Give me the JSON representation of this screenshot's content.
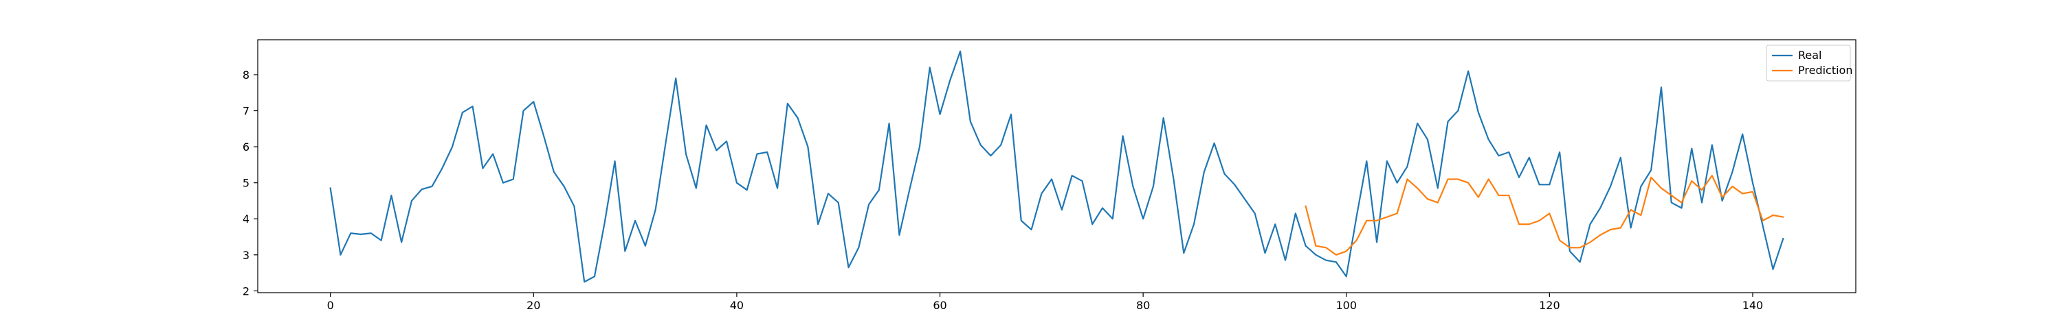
{
  "chart_data": {
    "type": "line",
    "title": "",
    "xlabel": "",
    "ylabel": "",
    "xlim": [
      -7.15,
      150.15
    ],
    "ylim": [
      1.95,
      8.97
    ],
    "x_ticks": [
      0,
      20,
      40,
      60,
      80,
      100,
      120,
      140
    ],
    "y_ticks": [
      2,
      3,
      4,
      5,
      6,
      7,
      8
    ],
    "grid": false,
    "legend": {
      "position": "upper right"
    },
    "series": [
      {
        "name": "Real",
        "color": "#1f77b4",
        "x_start": 0,
        "values": [
          4.85,
          3.0,
          3.6,
          3.57,
          3.6,
          3.4,
          4.65,
          3.35,
          4.5,
          4.82,
          4.9,
          5.4,
          6.0,
          6.95,
          7.12,
          5.4,
          5.8,
          5.0,
          5.1,
          7.0,
          7.25,
          6.3,
          5.3,
          4.9,
          4.35,
          2.25,
          2.4,
          3.9,
          5.6,
          3.1,
          3.95,
          3.25,
          4.25,
          6.1,
          7.9,
          5.8,
          4.85,
          6.6,
          5.9,
          6.15,
          5.0,
          4.8,
          5.8,
          5.85,
          4.85,
          7.2,
          6.8,
          6.0,
          3.85,
          4.7,
          4.45,
          2.65,
          3.2,
          4.4,
          4.8,
          6.65,
          3.55,
          4.8,
          6.0,
          8.2,
          6.9,
          7.85,
          8.65,
          6.7,
          6.05,
          5.75,
          6.05,
          6.9,
          3.95,
          3.7,
          4.7,
          5.1,
          4.25,
          5.2,
          5.05,
          3.85,
          4.3,
          4.0,
          6.3,
          4.9,
          4.0,
          4.9,
          6.8,
          5.1,
          3.05,
          3.85,
          5.3,
          6.1,
          5.25,
          4.95,
          4.55,
          4.15,
          3.05,
          3.85,
          2.85,
          4.15,
          3.25,
          3.0,
          2.85,
          2.8,
          2.4,
          4.05,
          5.6,
          3.35,
          5.6,
          5.0,
          5.45,
          6.65,
          6.2,
          4.85,
          6.7,
          7.0,
          8.1,
          6.95,
          6.2,
          5.75,
          5.85,
          5.15,
          5.7,
          4.95,
          4.95,
          5.85,
          3.1,
          2.8,
          3.85,
          4.3,
          4.9,
          5.7,
          3.75,
          4.9,
          5.35,
          7.65,
          4.45,
          4.3,
          5.95,
          4.45,
          6.05,
          4.5,
          5.3,
          6.35,
          5.0,
          3.8,
          2.6,
          3.45
        ]
      },
      {
        "name": "Prediction",
        "color": "#ff7f0e",
        "x_start": 96,
        "values": [
          4.35,
          3.25,
          3.2,
          3.0,
          3.1,
          3.4,
          3.95,
          3.95,
          4.05,
          4.15,
          5.1,
          4.85,
          4.55,
          4.45,
          5.1,
          5.1,
          5.0,
          4.6,
          5.1,
          4.65,
          4.65,
          3.85,
          3.85,
          3.95,
          4.15,
          3.4,
          3.2,
          3.2,
          3.35,
          3.55,
          3.7,
          3.75,
          4.25,
          4.1,
          5.15,
          4.85,
          4.65,
          4.45,
          5.05,
          4.8,
          5.2,
          4.6,
          4.9,
          4.7,
          4.75,
          3.95,
          4.1,
          4.05
        ]
      }
    ]
  }
}
